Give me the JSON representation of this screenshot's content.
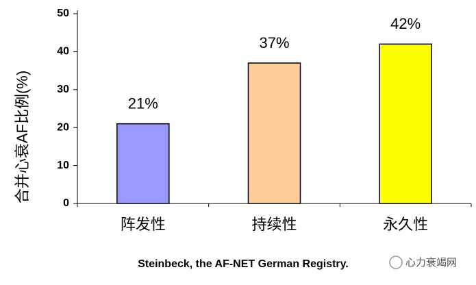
{
  "chart_data": {
    "type": "bar",
    "y_label": "合并心衰AF比例(%)",
    "categories": [
      "阵发性",
      "持续性",
      "永久性"
    ],
    "values": [
      21,
      37,
      42
    ],
    "value_labels": [
      "21%",
      "37%",
      "42%"
    ],
    "colors": [
      "#9999ff",
      "#ffcc99",
      "#ffff00"
    ],
    "ylim": [
      0,
      50
    ],
    "yticks": [
      0,
      10,
      20,
      30,
      40,
      50
    ],
    "source": "Steinbeck, the AF-NET German Registry.",
    "watermark": "心力衰竭网"
  }
}
